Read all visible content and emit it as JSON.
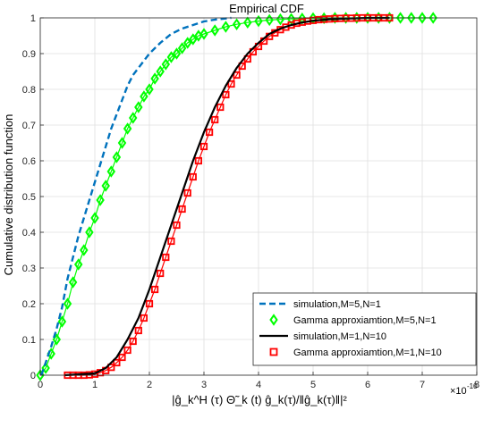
{
  "chart_data": {
    "type": "line",
    "title": "Empirical CDF",
    "ylabel": "Cumulative distribution function",
    "xlabel": "|ĝ_k^H (τ) Θ̃_k (t) ĝ_k(τ)/‖ĝ_k(τ)‖|²",
    "x_exponent": "×10",
    "x_exponent_power": "-10",
    "xlim": [
      0,
      8
    ],
    "ylim": [
      0,
      1
    ],
    "xticks": [
      "0",
      "1",
      "2",
      "3",
      "4",
      "5",
      "6",
      "7",
      "8"
    ],
    "yticks": [
      "0",
      "0.1",
      "0.2",
      "0.3",
      "0.4",
      "0.5",
      "0.6",
      "0.7",
      "0.8",
      "0.9",
      "1"
    ],
    "grid": true,
    "legend_position": "bottom-right",
    "series": [
      {
        "name": "simulation,M=5,N=1",
        "style": "dashed",
        "color": "#0072BD",
        "x": [
          0.02,
          0.2,
          0.3,
          0.4,
          0.5,
          0.6,
          0.7,
          0.8,
          0.9,
          1.0,
          1.1,
          1.2,
          1.3,
          1.4,
          1.5,
          1.6,
          1.7,
          1.8,
          1.9,
          2.0,
          2.2,
          2.4,
          2.6,
          2.8,
          3.0,
          3.2,
          3.5
        ],
        "y": [
          0,
          0.08,
          0.13,
          0.19,
          0.27,
          0.33,
          0.39,
          0.44,
          0.49,
          0.54,
          0.59,
          0.64,
          0.69,
          0.73,
          0.77,
          0.81,
          0.84,
          0.86,
          0.88,
          0.9,
          0.93,
          0.955,
          0.97,
          0.98,
          0.99,
          0.995,
          1.0
        ]
      },
      {
        "name": "Gamma approxiamtion,M=5,N=1",
        "style": "diamond",
        "color": "#00FF00",
        "x": [
          0,
          0.1,
          0.2,
          0.3,
          0.4,
          0.5,
          0.6,
          0.7,
          0.8,
          0.9,
          1.0,
          1.1,
          1.2,
          1.3,
          1.4,
          1.5,
          1.6,
          1.7,
          1.8,
          1.9,
          2.0,
          2.1,
          2.2,
          2.3,
          2.4,
          2.5,
          2.6,
          2.7,
          2.8,
          2.9,
          3.0,
          3.2,
          3.4,
          3.6,
          3.8,
          4.0,
          4.2,
          4.4,
          4.6,
          4.8,
          5.0,
          5.2,
          5.4,
          5.6,
          5.8,
          6.0,
          6.2,
          6.4,
          6.6,
          6.8,
          7.0,
          7.2
        ],
        "y": [
          0,
          0.02,
          0.06,
          0.1,
          0.15,
          0.2,
          0.26,
          0.31,
          0.35,
          0.4,
          0.44,
          0.49,
          0.53,
          0.57,
          0.61,
          0.65,
          0.69,
          0.72,
          0.75,
          0.78,
          0.8,
          0.83,
          0.85,
          0.87,
          0.89,
          0.9,
          0.915,
          0.93,
          0.94,
          0.95,
          0.955,
          0.965,
          0.975,
          0.982,
          0.987,
          0.991,
          0.994,
          0.996,
          0.997,
          0.998,
          0.999,
          0.999,
          1.0,
          1.0,
          1.0,
          1.0,
          1.0,
          1.0,
          1.0,
          1.0,
          1.0,
          1.0
        ]
      },
      {
        "name": "simulation,M=1,N=10",
        "style": "solid",
        "color": "#000000",
        "x": [
          0.45,
          1.0,
          1.2,
          1.4,
          1.6,
          1.8,
          2.0,
          2.2,
          2.4,
          2.6,
          2.8,
          3.0,
          3.2,
          3.4,
          3.6,
          3.8,
          4.0,
          4.2,
          4.4,
          4.6,
          4.8,
          5.0,
          5.3,
          5.6,
          6.0,
          6.4
        ],
        "y": [
          0,
          0.005,
          0.02,
          0.05,
          0.1,
          0.16,
          0.24,
          0.33,
          0.42,
          0.51,
          0.6,
          0.68,
          0.75,
          0.81,
          0.86,
          0.9,
          0.93,
          0.955,
          0.97,
          0.98,
          0.987,
          0.992,
          0.996,
          0.998,
          1.0,
          1.0
        ]
      },
      {
        "name": "Gamma approxiamtion,M=1,N=10",
        "style": "square",
        "color": "#FF0000",
        "x": [
          0.5,
          0.6,
          0.7,
          0.8,
          0.9,
          1.0,
          1.1,
          1.2,
          1.3,
          1.4,
          1.5,
          1.6,
          1.7,
          1.8,
          1.9,
          2.0,
          2.1,
          2.2,
          2.3,
          2.4,
          2.5,
          2.6,
          2.7,
          2.8,
          2.9,
          3.0,
          3.1,
          3.2,
          3.3,
          3.4,
          3.5,
          3.6,
          3.7,
          3.8,
          3.9,
          4.0,
          4.1,
          4.2,
          4.3,
          4.4,
          4.5,
          4.6,
          4.7,
          4.8,
          4.9,
          5.0,
          5.1,
          5.2,
          5.3,
          5.4,
          5.5,
          5.6,
          5.7,
          5.8,
          5.9,
          6.0,
          6.1,
          6.2,
          6.3,
          6.4
        ],
        "y": [
          0,
          0,
          0,
          0,
          0.001,
          0.003,
          0.007,
          0.013,
          0.022,
          0.035,
          0.05,
          0.07,
          0.095,
          0.125,
          0.16,
          0.2,
          0.24,
          0.285,
          0.33,
          0.375,
          0.42,
          0.465,
          0.51,
          0.555,
          0.6,
          0.64,
          0.68,
          0.715,
          0.75,
          0.785,
          0.815,
          0.84,
          0.865,
          0.885,
          0.905,
          0.92,
          0.935,
          0.948,
          0.958,
          0.967,
          0.974,
          0.98,
          0.985,
          0.988,
          0.991,
          0.993,
          0.995,
          0.996,
          0.997,
          0.998,
          0.9985,
          0.999,
          0.999,
          0.9995,
          1.0,
          1.0,
          1.0,
          1.0,
          1.0,
          1.0
        ]
      }
    ]
  }
}
